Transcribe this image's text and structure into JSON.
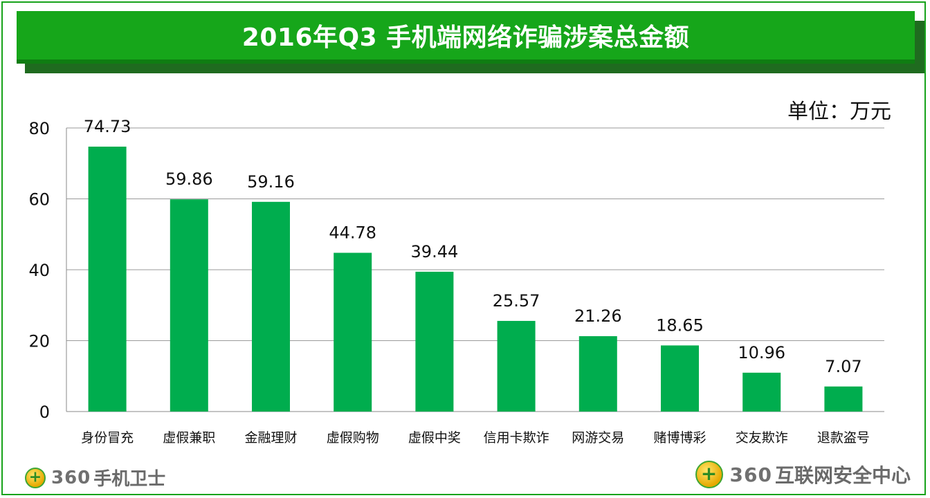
{
  "title": "2016年Q3 手机端网络诈骗涉案总金额",
  "unit_label": "单位：万元",
  "colors": {
    "bar": "#00ad4e",
    "banner": "#16a61a",
    "grid": "#9a9a9a"
  },
  "footer": {
    "left_icon": "360-guard-logo-icon",
    "left_num": "360",
    "left_text": "手机卫士",
    "right_icon": "360-guard-logo-icon",
    "right_num": "360",
    "right_text": "互联网安全中心"
  },
  "chart_data": {
    "type": "bar",
    "categories": [
      "身份冒充",
      "虚假兼职",
      "金融理财",
      "虚假购物",
      "虚假中奖",
      "信用卡欺诈",
      "网游交易",
      "赌博博彩",
      "交友欺诈",
      "退款盗号"
    ],
    "values": [
      74.73,
      59.86,
      59.16,
      44.78,
      39.44,
      25.57,
      21.26,
      18.65,
      10.96,
      7.07
    ],
    "value_labels": [
      "74.73",
      "59.86",
      "59.16",
      "44.78",
      "39.44",
      "25.57",
      "21.26",
      "18.65",
      "10.96",
      "7.07"
    ],
    "yticks": [
      0,
      20,
      40,
      60,
      80
    ],
    "ylim": [
      0,
      80
    ],
    "grid": true,
    "legend": "none"
  }
}
